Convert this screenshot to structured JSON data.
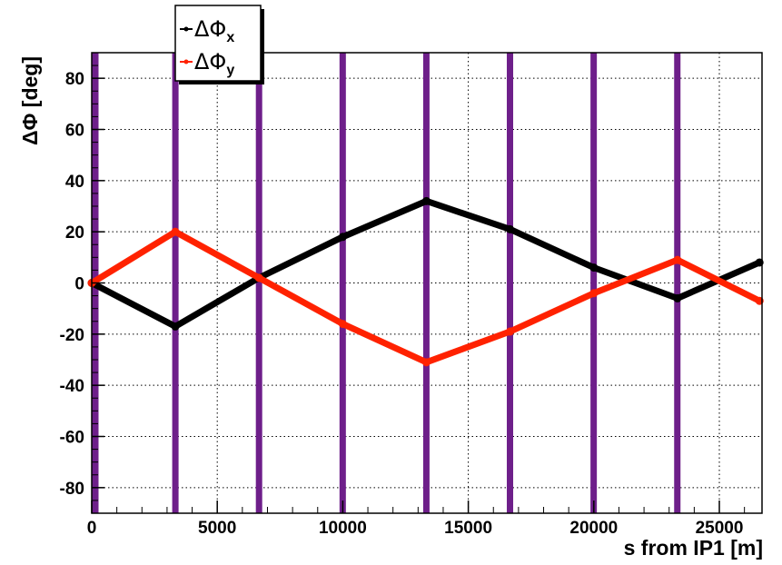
{
  "chart_data": {
    "type": "line",
    "title": "",
    "xlabel": "s from IP1 [m]",
    "ylabel": "ΔΦ [deg]",
    "xlim": [
      0,
      26700
    ],
    "ylim": [
      -90,
      90
    ],
    "x_ticks": [
      0,
      5000,
      10000,
      15000,
      20000,
      25000
    ],
    "x_tick_labels": [
      "0",
      "5000",
      "10000",
      "15000",
      "20000",
      "25000"
    ],
    "y_ticks": [
      -80,
      -60,
      -40,
      -20,
      0,
      20,
      40,
      60,
      80
    ],
    "y_tick_labels": [
      "-80",
      "-60",
      "-40",
      "-20",
      "0",
      "20",
      "40",
      "60",
      "80"
    ],
    "grid": true,
    "legend_position": "top-left",
    "vertical_markers": [
      0,
      3332,
      6664,
      9997,
      13329,
      16661,
      19994,
      23326
    ],
    "series": [
      {
        "name_main": "ΔΦ",
        "name_sub": "x",
        "color": "#000000",
        "x": [
          0,
          3330,
          6660,
          10000,
          13330,
          16660,
          20000,
          23330,
          26600
        ],
        "y": [
          0,
          -17,
          2,
          18,
          32,
          21,
          6,
          -6,
          8
        ]
      },
      {
        "name_main": "ΔΦ",
        "name_sub": "y",
        "color": "#ff2200",
        "x": [
          0,
          3330,
          6660,
          10000,
          13330,
          16660,
          20000,
          23330,
          26600
        ],
        "y": [
          0,
          20,
          2,
          -16,
          -31,
          -19,
          -4,
          9,
          -7
        ]
      }
    ],
    "colors": {
      "marker": "#6e1f8a",
      "grid": "#000000"
    }
  }
}
